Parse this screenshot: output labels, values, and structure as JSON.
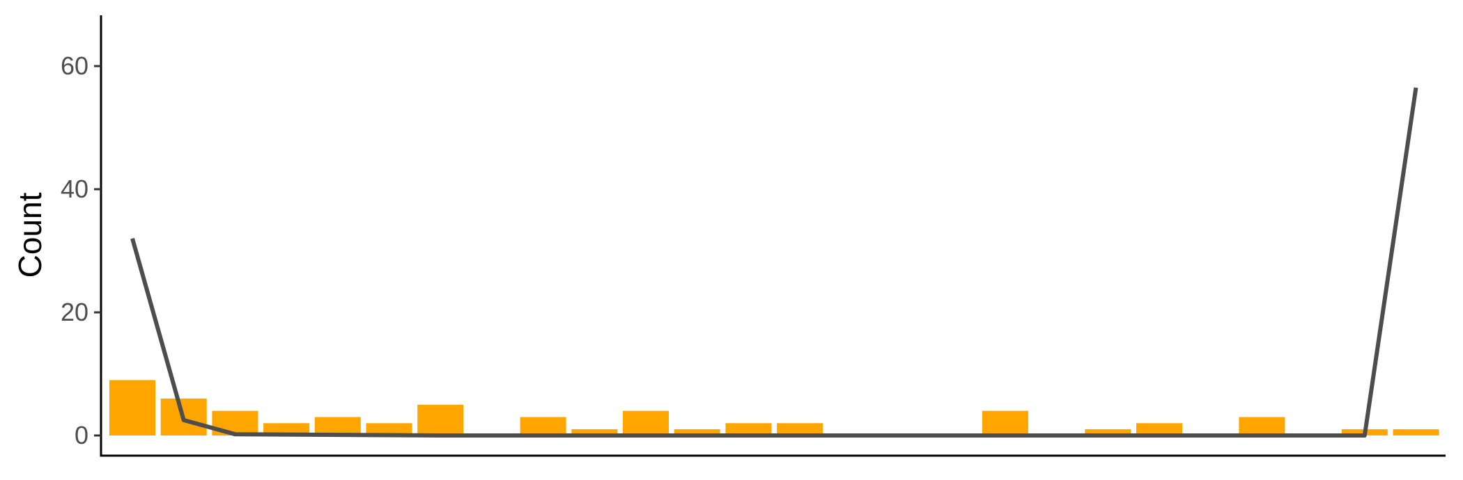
{
  "chart_data": {
    "type": "bar",
    "title": "",
    "xlabel": "",
    "ylabel": "Count",
    "ylim": [
      0,
      68
    ],
    "yticks": [
      0,
      20,
      40,
      60
    ],
    "ytick_labels": [
      "0",
      "20",
      "40",
      "60"
    ],
    "grid": false,
    "legend": "none",
    "bar_color": "#FFA500",
    "line_color": "#4D4D4D",
    "axis_color": "#000000",
    "bins": 26,
    "bar_values": [
      9,
      6,
      4,
      2,
      3,
      2,
      5,
      0,
      3,
      1,
      4,
      1,
      2,
      2,
      0,
      0,
      0,
      4,
      0,
      1,
      2,
      0,
      3,
      0,
      1,
      1
    ],
    "line_x_bins": [
      0,
      1,
      2,
      6,
      23,
      24,
      25
    ],
    "line_values": [
      32,
      2.5,
      0.2,
      0,
      0,
      0,
      56.5
    ]
  }
}
